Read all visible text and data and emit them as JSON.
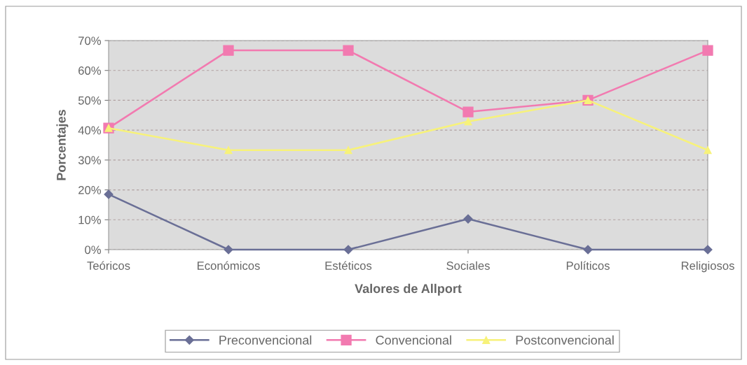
{
  "chart_data": {
    "type": "line",
    "xlabel": "Valores de Allport",
    "ylabel": "Porcentajes",
    "categories": [
      "Teóricos",
      "Económicos",
      "Estéticos",
      "Sociales",
      "Políticos",
      "Religiosos"
    ],
    "series": [
      {
        "name": "Preconvencional",
        "color": "#6a6f96",
        "marker": "diamond",
        "values": [
          18.5,
          0,
          0,
          10.3,
          0,
          0
        ]
      },
      {
        "name": "Convencional",
        "color": "#f27ab0",
        "marker": "square",
        "values": [
          40.7,
          66.7,
          66.7,
          46.1,
          50,
          66.7
        ]
      },
      {
        "name": "Postconvencional",
        "color": "#f7f27a",
        "marker": "triangle",
        "values": [
          40.7,
          33.3,
          33.3,
          42.9,
          50,
          33.3
        ]
      }
    ],
    "ylim": [
      0,
      70
    ],
    "yticks": [
      {
        "value": 0,
        "label": "0%"
      },
      {
        "value": 10,
        "label": "10%"
      },
      {
        "value": 20,
        "label": "20%"
      },
      {
        "value": 30,
        "label": "30%"
      },
      {
        "value": 40,
        "label": "40%"
      },
      {
        "value": 50,
        "label": "50%"
      },
      {
        "value": 60,
        "label": "60%"
      },
      {
        "value": 70,
        "label": "70%"
      }
    ],
    "grid": "y",
    "legend": "bottom",
    "line_style": "solid"
  }
}
